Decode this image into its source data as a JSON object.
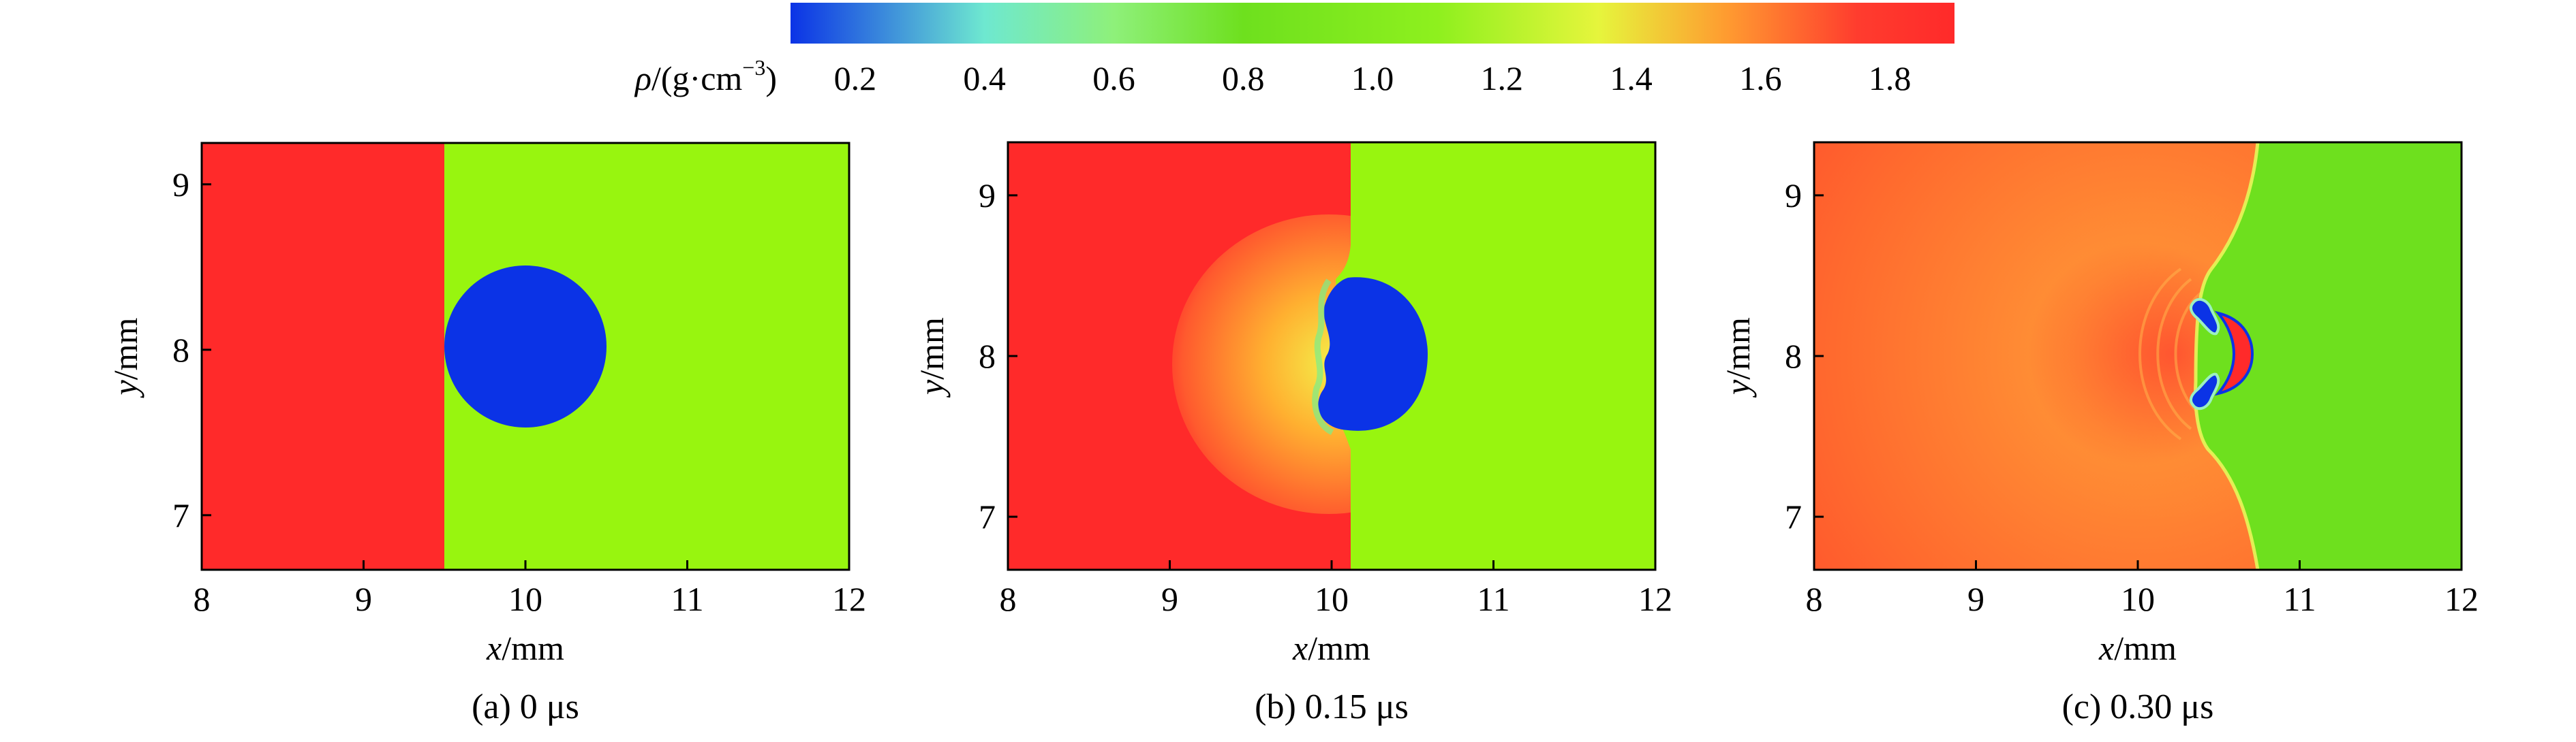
{
  "colorbar": {
    "label_symbol": "ρ",
    "label_rest": "/(g·cm",
    "label_exp": "−3",
    "label_close": ")",
    "ticks": [
      "0.2",
      "0.4",
      "0.6",
      "0.8",
      "1.0",
      "1.2",
      "1.4",
      "1.6",
      "1.8"
    ],
    "range": [
      0.1,
      1.9
    ],
    "stops": [
      {
        "v": 0.1,
        "color": "#0b33e6"
      },
      {
        "v": 0.4,
        "color": "#6ee8d0"
      },
      {
        "v": 0.6,
        "color": "#8ef07a"
      },
      {
        "v": 0.8,
        "color": "#6ee01e"
      },
      {
        "v": 1.1,
        "color": "#8ef01e"
      },
      {
        "v": 1.35,
        "color": "#e6f53c"
      },
      {
        "v": 1.55,
        "color": "#ff9a30"
      },
      {
        "v": 1.75,
        "color": "#ff3c2e"
      },
      {
        "v": 1.9,
        "color": "#ff2a2a"
      }
    ]
  },
  "chart_data": [
    {
      "type": "heatmap",
      "caption": "(a) 0 μs",
      "xlabel": "x/mm",
      "ylabel": "y/mm",
      "xticks": [
        "8",
        "9",
        "10",
        "11",
        "12"
      ],
      "yticks": [
        "7",
        "8",
        "9"
      ],
      "xlim": [
        8,
        12
      ],
      "ylim": [
        6.67,
        9.25
      ],
      "shock_x": 9.5,
      "bubble_center": [
        10.0,
        8.0
      ],
      "bubble_radius": 0.5,
      "density_shocked": 1.8,
      "density_ambient": 1.1,
      "density_bubble": 0.13
    },
    {
      "type": "heatmap",
      "caption": "(b) 0.15 μs",
      "xlabel": "x/mm",
      "ylabel": "y/mm",
      "xticks": [
        "8",
        "9",
        "10",
        "11",
        "12"
      ],
      "yticks": [
        "7",
        "8",
        "9"
      ],
      "xlim": [
        8,
        12
      ],
      "ylim": [
        6.67,
        9.33
      ],
      "shock_x": 10.08,
      "bubble_center": [
        10.05,
        8.0
      ],
      "bubble_radius": 0.48
    },
    {
      "type": "heatmap",
      "caption": "(c) 0.30 μs",
      "xlabel": "x/mm",
      "ylabel": "y/mm",
      "xticks": [
        "8",
        "9",
        "10",
        "11",
        "12"
      ],
      "yticks": [
        "7",
        "8",
        "9"
      ],
      "xlim": [
        8,
        12
      ],
      "ylim": [
        6.67,
        9.33
      ],
      "shock_x_edge": 10.7,
      "shock_x_center": 10.3
    }
  ]
}
